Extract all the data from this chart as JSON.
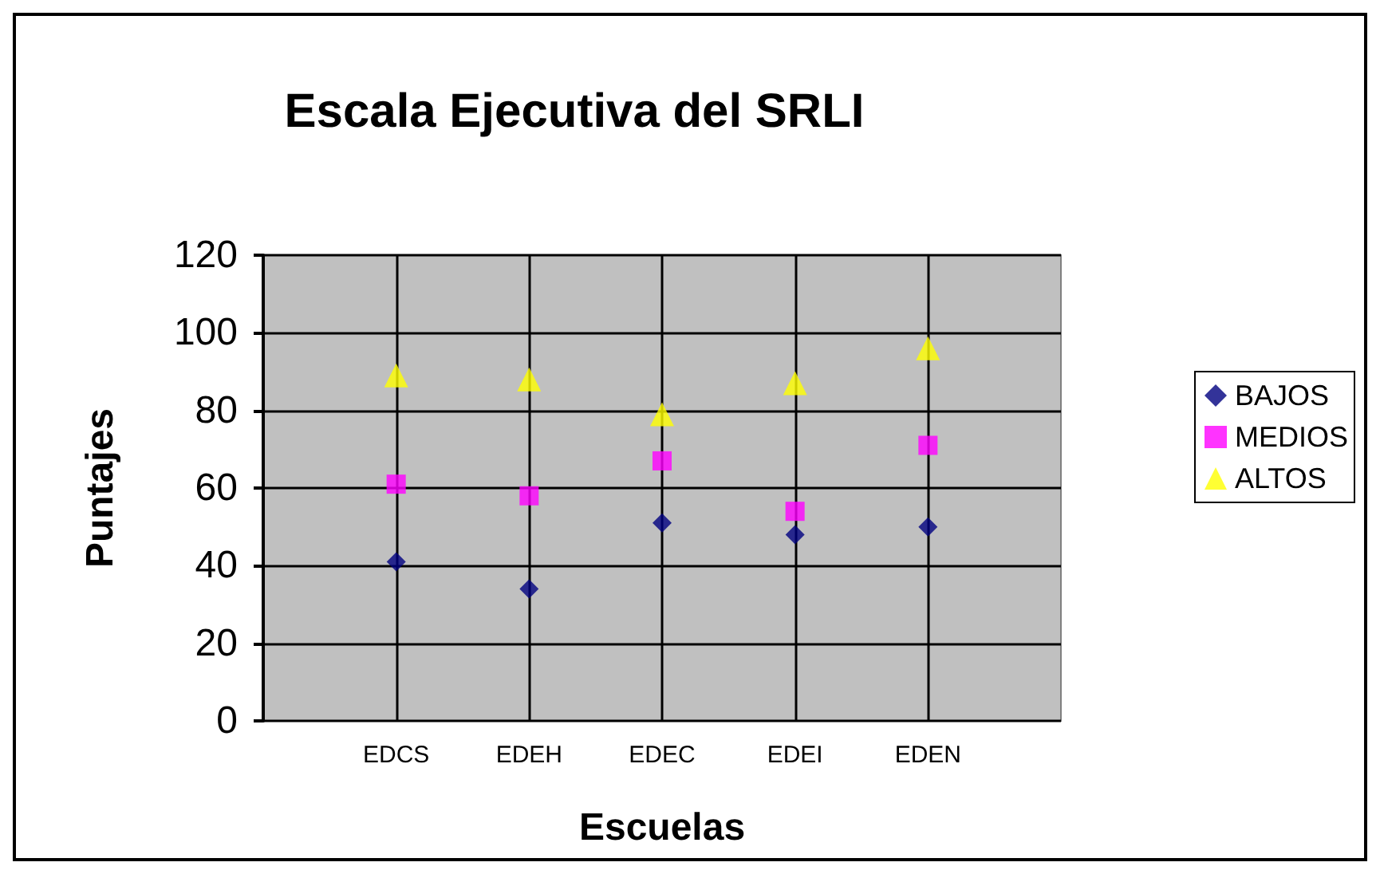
{
  "chart_data": {
    "type": "scatter",
    "title": "Escala Ejecutiva del SRLI",
    "xlabel": "Escuelas",
    "ylabel": "Puntajes",
    "categories": [
      "EDCS",
      "EDEH",
      "EDEC",
      "EDEI",
      "EDEN"
    ],
    "series": [
      {
        "name": "BAJOS",
        "color": "#000080",
        "marker": "diamond",
        "values": [
          41,
          34,
          51,
          48,
          50
        ]
      },
      {
        "name": "MEDIOS",
        "color": "#ff00ff",
        "marker": "square",
        "values": [
          61,
          58,
          67,
          54,
          71
        ]
      },
      {
        "name": "ALTOS",
        "color": "#ffff00",
        "marker": "triangle",
        "values": [
          89,
          88,
          79,
          87,
          96
        ]
      }
    ],
    "ylim": [
      0,
      120
    ],
    "yticks": [
      0,
      20,
      40,
      60,
      80,
      100,
      120
    ],
    "grid": true,
    "legend": "right"
  }
}
